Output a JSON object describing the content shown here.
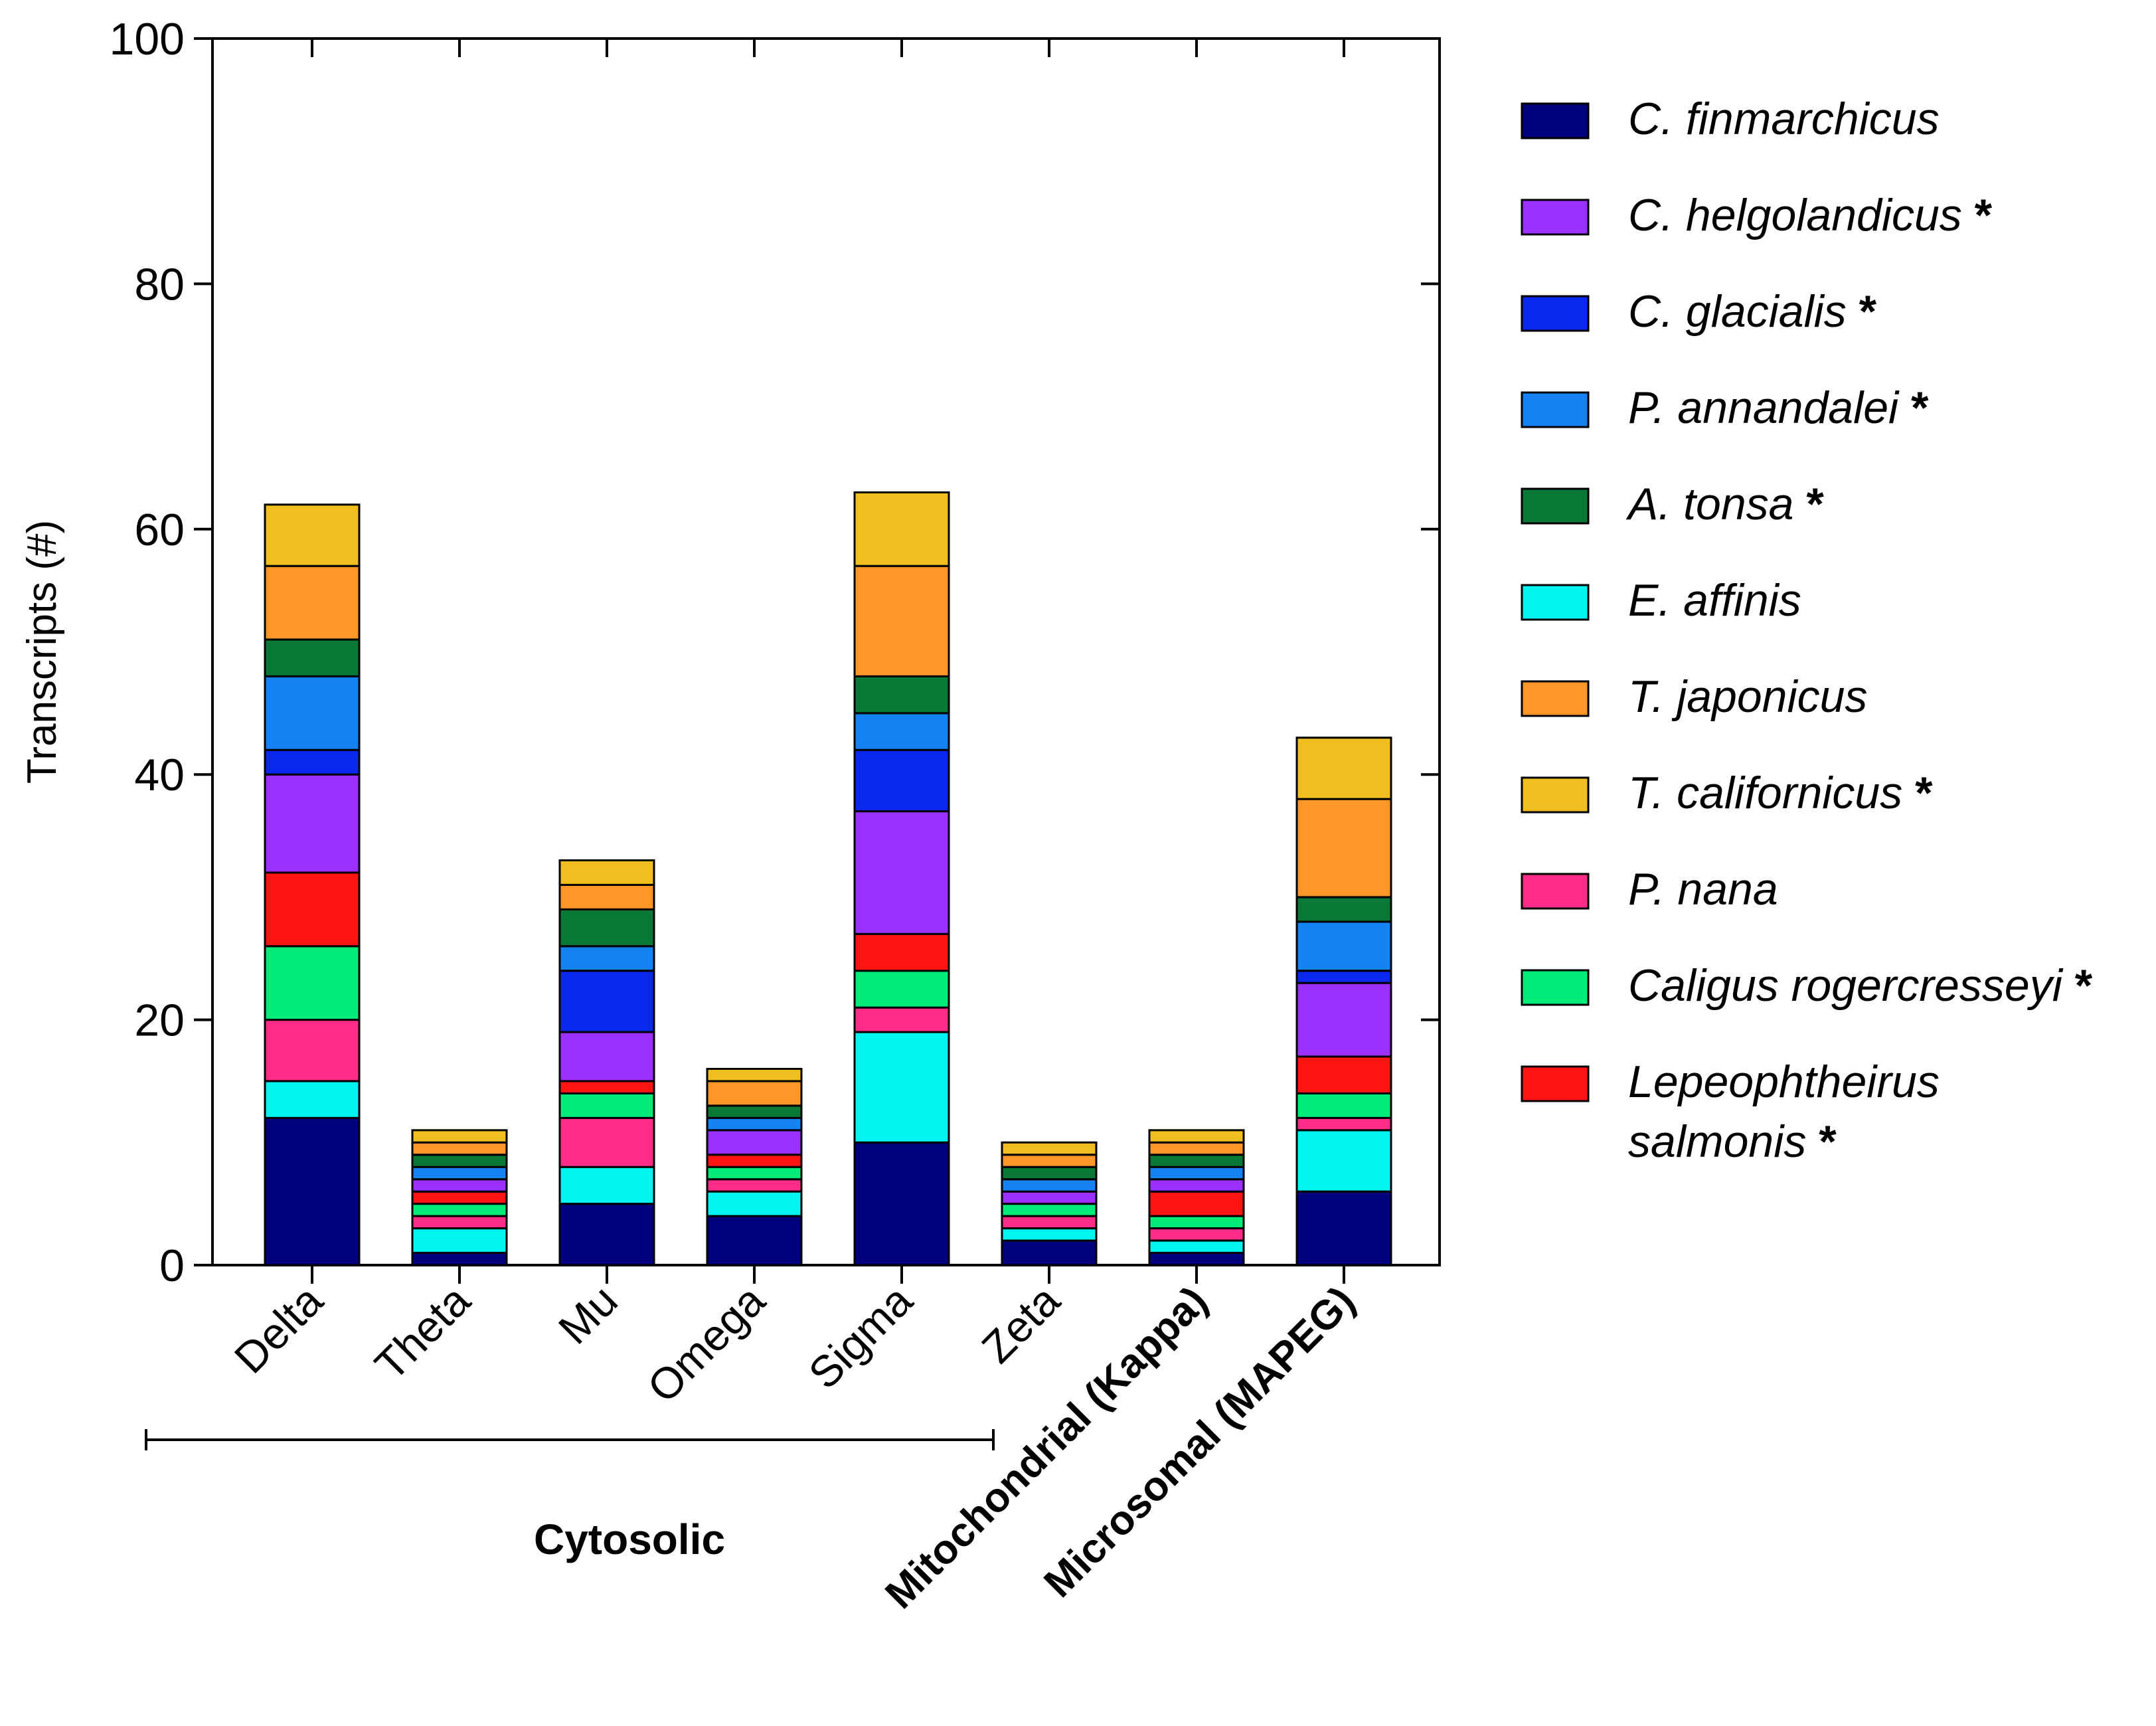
{
  "chart_data": {
    "type": "bar",
    "stacked": true,
    "ylabel": "Transcripts (#)",
    "ylim": [
      0,
      100
    ],
    "yticks": [
      0,
      20,
      40,
      60,
      80,
      100
    ],
    "categories": [
      "Delta",
      "Theta",
      "Mu",
      "Omega",
      "Sigma",
      "Zeta",
      "Mitochondrial (Kappa)",
      "Microsomal (MAPEG)"
    ],
    "group_label": "Cytosolic",
    "series": [
      {
        "name": "C. finmarchicus",
        "values": [
          12,
          1,
          5,
          4,
          10,
          2,
          1,
          6
        ]
      },
      {
        "name": "E. affinis",
        "values": [
          3,
          2,
          3,
          2,
          9,
          1,
          1,
          5
        ]
      },
      {
        "name": "P. nana",
        "values": [
          5,
          1,
          4,
          1,
          2,
          1,
          1,
          1
        ]
      },
      {
        "name": "Caligus rogercresseyi",
        "values": [
          6,
          1,
          2,
          1,
          3,
          1,
          1,
          2
        ]
      },
      {
        "name": "Lepeophtheirus salmonis",
        "values": [
          6,
          1,
          1,
          1,
          3,
          0,
          2,
          3
        ]
      },
      {
        "name": "C. helgolandicus",
        "values": [
          8,
          1,
          4,
          2,
          10,
          1,
          1,
          6
        ]
      },
      {
        "name": "C. glacialis",
        "values": [
          2,
          0,
          5,
          0,
          5,
          0,
          0,
          1
        ]
      },
      {
        "name": "P. annandalei",
        "values": [
          6,
          1,
          2,
          1,
          3,
          1,
          1,
          4
        ]
      },
      {
        "name": "A. tonsa",
        "values": [
          3,
          1,
          3,
          1,
          3,
          1,
          1,
          2
        ]
      },
      {
        "name": "T. japonicus",
        "values": [
          6,
          1,
          2,
          2,
          9,
          1,
          1,
          8
        ]
      },
      {
        "name": "T. californicus",
        "values": [
          5,
          1,
          2,
          1,
          6,
          1,
          1,
          5
        ]
      }
    ],
    "colors": {
      "C. finmarchicus": "#00007d",
      "C. helgolandicus": "#9b30ff",
      "C. glacialis": "#0a28f0",
      "P. annandalei": "#1482f0",
      "A. tonsa": "#0a7837",
      "E. affinis": "#00f5f0",
      "T. japonicus": "#ff9628",
      "T. californicus": "#f0be1e",
      "P. nana": "#ff2d87",
      "Caligus rogercresseyi": "#00eb78",
      "Lepeophtheirus salmonis": "#ff1414"
    },
    "legend": [
      {
        "lines": [
          "C. finmarchicus"
        ],
        "star": false,
        "key": "C. finmarchicus"
      },
      {
        "lines": [
          "C. helgolandicus"
        ],
        "star": true,
        "key": "C. helgolandicus"
      },
      {
        "lines": [
          "C. glacialis"
        ],
        "star": true,
        "key": "C. glacialis"
      },
      {
        "lines": [
          "P. annandalei"
        ],
        "star": true,
        "key": "P. annandalei"
      },
      {
        "lines": [
          "A. tonsa"
        ],
        "star": true,
        "key": "A. tonsa"
      },
      {
        "lines": [
          "E. affinis"
        ],
        "star": false,
        "key": "E. affinis"
      },
      {
        "lines": [
          "T. japonicus"
        ],
        "star": false,
        "key": "T. japonicus"
      },
      {
        "lines": [
          "T. californicus"
        ],
        "star": true,
        "key": "T. californicus"
      },
      {
        "lines": [
          "P. nana"
        ],
        "star": false,
        "key": "P. nana"
      },
      {
        "lines": [
          "Caligus rogercresseyi"
        ],
        "star": true,
        "key": "Caligus rogercresseyi"
      },
      {
        "lines": [
          "Lepeophtheirus",
          "salmonis"
        ],
        "star": true,
        "key": "Lepeophtheirus salmonis"
      }
    ],
    "legend_star": "*"
  }
}
